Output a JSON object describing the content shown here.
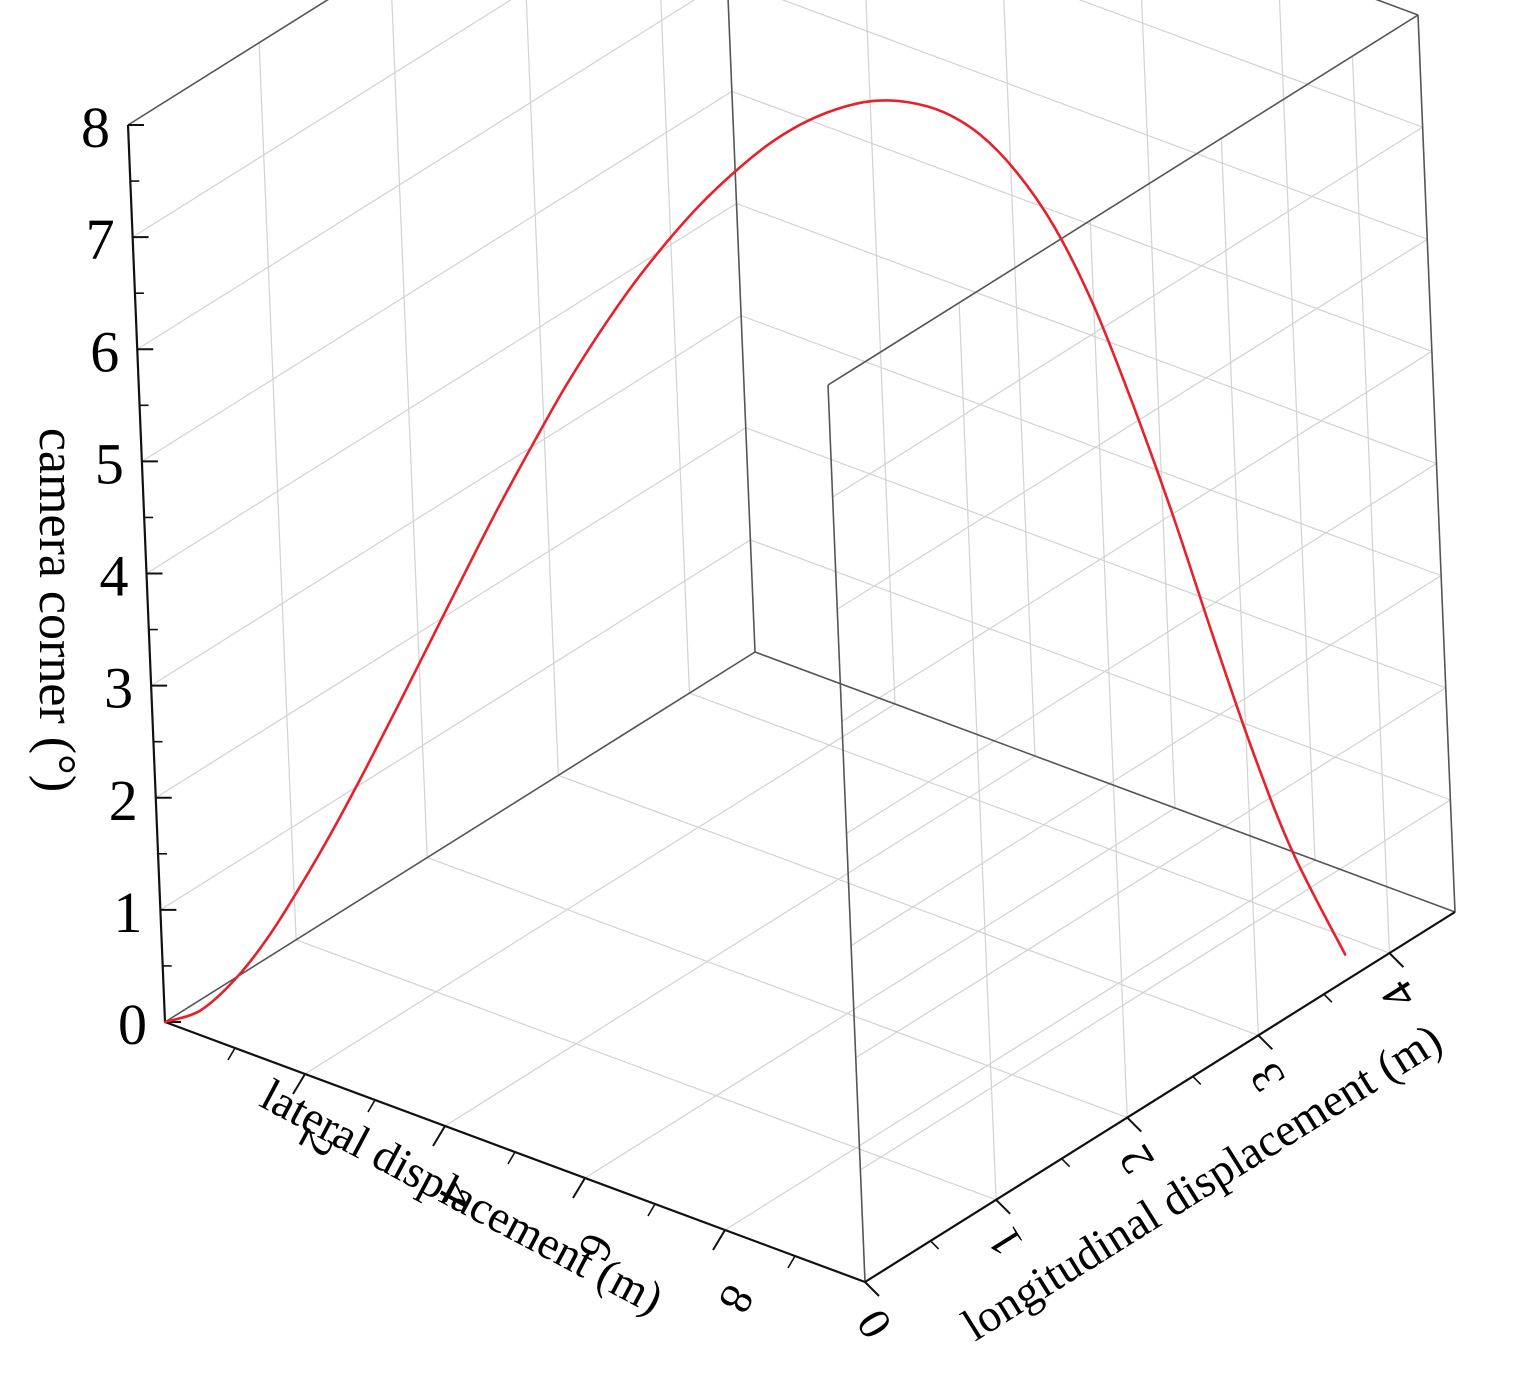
{
  "chart_data": {
    "type": "line",
    "projection": "3d",
    "xlabel": "lateral displacement (m)",
    "ylabel": "longitudinal displacement (m)",
    "zlabel": "camera corner (°)",
    "xlim": [
      0,
      10
    ],
    "ylim": [
      0,
      4.5
    ],
    "zlim": [
      0,
      8
    ],
    "xticks": [
      "2",
      "4",
      "6",
      "8"
    ],
    "yticks": [
      "0",
      "1",
      "2",
      "3",
      "4"
    ],
    "zticks": [
      "0",
      "1",
      "2",
      "3",
      "4",
      "5",
      "6",
      "7",
      "8"
    ],
    "grid": true,
    "series": [
      {
        "color": "#e8202a",
        "x": [
          0,
          0.3,
          0.6,
          0.9,
          1.2,
          1.5,
          1.8,
          2.1,
          2.4,
          2.7,
          3.0,
          3.3,
          3.6,
          3.9,
          4.2,
          4.5,
          4.8,
          5.1,
          5.4,
          5.7,
          6.0,
          6.3,
          6.6,
          6.9,
          7.2,
          7.5,
          7.8,
          8.1,
          8.4,
          8.7,
          9.0,
          9.3,
          9.6,
          10.0
        ],
        "y": [
          0,
          0.11,
          0.22,
          0.33,
          0.44,
          0.55,
          0.66,
          0.77,
          0.88,
          0.99,
          1.1,
          1.21,
          1.32,
          1.43,
          1.54,
          1.65,
          1.76,
          1.87,
          1.98,
          2.09,
          2.2,
          2.31,
          2.42,
          2.53,
          2.64,
          2.75,
          2.86,
          2.97,
          3.08,
          3.19,
          3.3,
          3.41,
          3.52,
          3.67
        ],
        "z": [
          0,
          0.09,
          0.35,
          0.72,
          1.18,
          1.68,
          2.22,
          2.78,
          3.35,
          3.92,
          4.48,
          5.01,
          5.52,
          5.98,
          6.4,
          6.77,
          7.1,
          7.38,
          7.62,
          7.8,
          7.92,
          7.98,
          7.96,
          7.86,
          7.65,
          7.3,
          6.8,
          6.1,
          5.2,
          4.2,
          3.1,
          2.05,
          1.15,
          0.23
        ]
      }
    ]
  }
}
